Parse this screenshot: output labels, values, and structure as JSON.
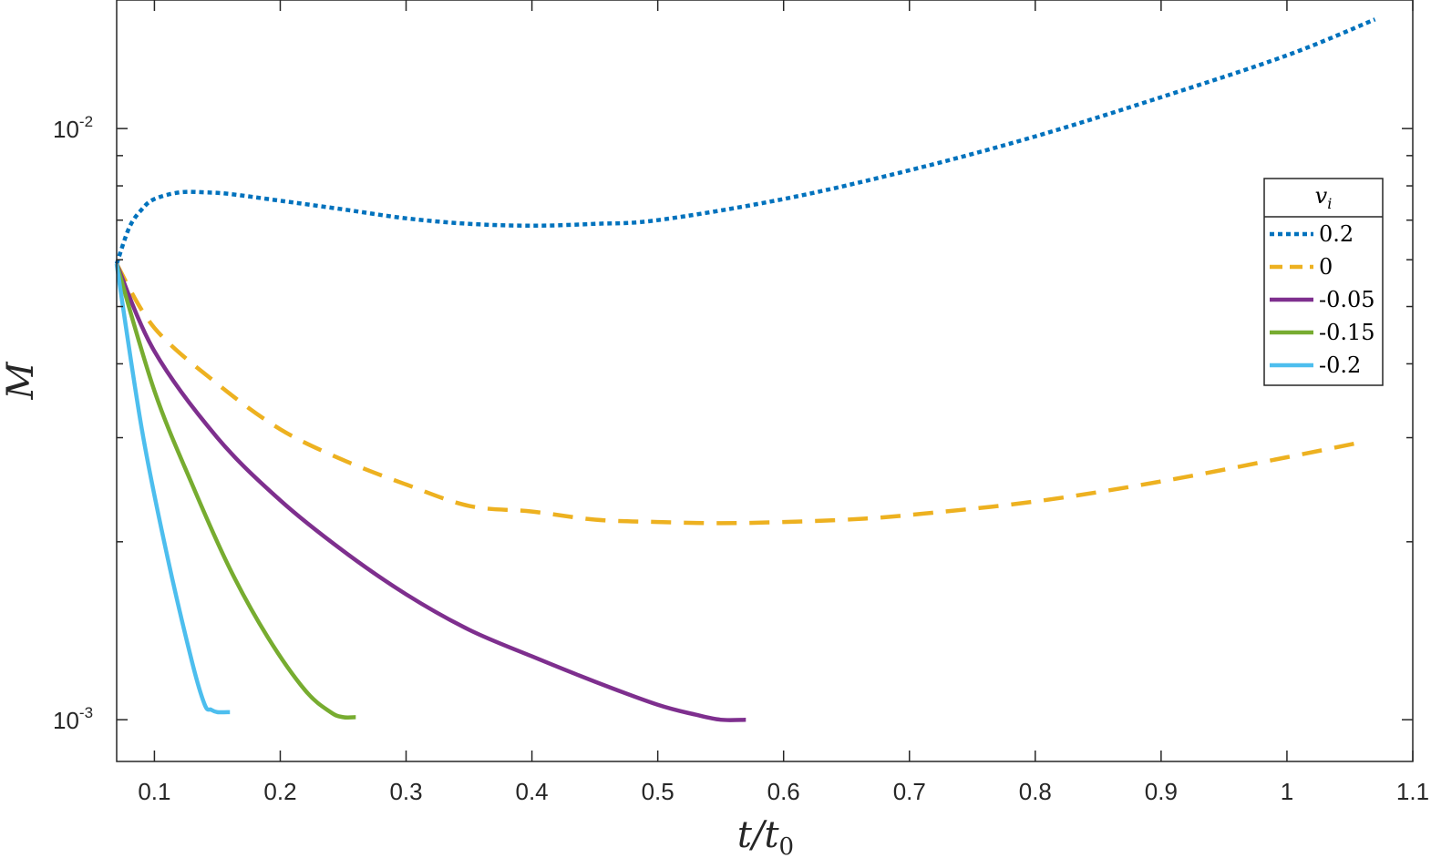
{
  "chart_data": {
    "type": "line",
    "xlabel": "t/t0",
    "ylabel": "M",
    "xlim": [
      0.07,
      1.1
    ],
    "ylim": [
      0.00085,
      0.0165
    ],
    "yscale": "log",
    "grid": false,
    "legend_position": "right",
    "legend_title": "v_i",
    "x_ticks": [
      0.1,
      0.2,
      0.3,
      0.4,
      0.5,
      0.6,
      0.7,
      0.8,
      0.9,
      1,
      1.1
    ],
    "x_tick_labels": [
      "0.1",
      "0.2",
      "0.3",
      "0.4",
      "0.5",
      "0.6",
      "0.7",
      "0.8",
      "0.9",
      "1",
      "1.1"
    ],
    "y_major_ticks": [
      0.001,
      0.01
    ],
    "y_tick_labels": [
      {
        "base": "10",
        "exp": "-3"
      },
      {
        "base": "10",
        "exp": "-2"
      }
    ],
    "y_minor_ticks": [
      0.002,
      0.003,
      0.004,
      0.005,
      0.006,
      0.007,
      0.008,
      0.009
    ],
    "series": [
      {
        "name": "0.2",
        "style": "dotted",
        "color": "#0072BD",
        "x": [
          0.07,
          0.08,
          0.09,
          0.1,
          0.12,
          0.14,
          0.16,
          0.2,
          0.25,
          0.3,
          0.35,
          0.4,
          0.45,
          0.5,
          0.6,
          0.7,
          0.8,
          0.9,
          1.0,
          1.07
        ],
        "y": [
          0.0059,
          0.0068,
          0.0073,
          0.0076,
          0.0078,
          0.0078,
          0.00775,
          0.00755,
          0.0073,
          0.00705,
          0.0069,
          0.00685,
          0.0069,
          0.007,
          0.0076,
          0.0085,
          0.0097,
          0.0113,
          0.0133,
          0.0153
        ]
      },
      {
        "name": "0",
        "style": "dashed",
        "color": "#EDB120",
        "x": [
          0.07,
          0.1,
          0.15,
          0.2,
          0.25,
          0.3,
          0.35,
          0.4,
          0.45,
          0.5,
          0.55,
          0.6,
          0.65,
          0.7,
          0.8,
          0.9,
          1.0,
          1.06
        ],
        "y": [
          0.0059,
          0.0046,
          0.0037,
          0.0031,
          0.00275,
          0.0025,
          0.0023,
          0.00225,
          0.00218,
          0.00216,
          0.00215,
          0.00216,
          0.00218,
          0.00222,
          0.00234,
          0.00253,
          0.00278,
          0.00295
        ]
      },
      {
        "name": "-0.05",
        "style": "solid",
        "color": "#7E2F8E",
        "x": [
          0.07,
          0.1,
          0.15,
          0.2,
          0.25,
          0.3,
          0.35,
          0.4,
          0.45,
          0.5,
          0.53,
          0.55,
          0.57
        ],
        "y": [
          0.0059,
          0.0042,
          0.003,
          0.00235,
          0.00193,
          0.00163,
          0.00142,
          0.00128,
          0.00116,
          0.00106,
          0.00102,
          0.001,
          0.001
        ]
      },
      {
        "name": "-0.15",
        "style": "solid",
        "color": "#77AC30",
        "x": [
          0.07,
          0.1,
          0.13,
          0.16,
          0.19,
          0.22,
          0.24,
          0.25,
          0.26
        ],
        "y": [
          0.0059,
          0.0036,
          0.0025,
          0.0018,
          0.00138,
          0.00112,
          0.00103,
          0.00101,
          0.00101
        ]
      },
      {
        "name": "-0.2",
        "style": "solid",
        "color": "#4DBEEE",
        "x": [
          0.07,
          0.09,
          0.11,
          0.13,
          0.14,
          0.145,
          0.15,
          0.16
        ],
        "y": [
          0.0059,
          0.0031,
          0.0019,
          0.00125,
          0.00106,
          0.00104,
          0.00103,
          0.00103
        ]
      }
    ]
  }
}
